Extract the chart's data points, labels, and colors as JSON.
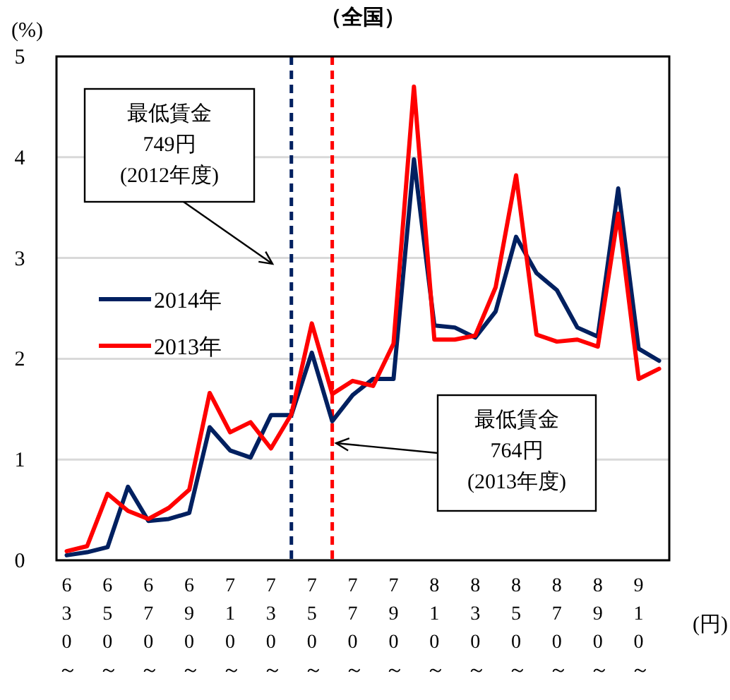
{
  "chart_data": {
    "type": "line",
    "title": "（全国）",
    "ylabel": "(%)",
    "xlabel": "(円)",
    "x": [
      630,
      640,
      650,
      660,
      670,
      680,
      690,
      700,
      710,
      720,
      730,
      740,
      750,
      760,
      770,
      780,
      790,
      800,
      810,
      820,
      830,
      840,
      850,
      860,
      870,
      880,
      890,
      900,
      910,
      920
    ],
    "xlim": [
      625,
      925
    ],
    "xticks": [
      {
        "value": 630,
        "label": "630～"
      },
      {
        "value": 650,
        "label": "650～"
      },
      {
        "value": 670,
        "label": "670～"
      },
      {
        "value": 690,
        "label": "690～"
      },
      {
        "value": 710,
        "label": "710～"
      },
      {
        "value": 730,
        "label": "730～"
      },
      {
        "value": 750,
        "label": "750～"
      },
      {
        "value": 770,
        "label": "770～"
      },
      {
        "value": 790,
        "label": "790～"
      },
      {
        "value": 810,
        "label": "810～"
      },
      {
        "value": 830,
        "label": "830～"
      },
      {
        "value": 850,
        "label": "850～"
      },
      {
        "value": 870,
        "label": "870～"
      },
      {
        "value": 890,
        "label": "890～"
      },
      {
        "value": 910,
        "label": "910～"
      }
    ],
    "ylim": [
      0,
      5
    ],
    "yticks": [
      0,
      1,
      2,
      3,
      4,
      5
    ],
    "grid": "y",
    "legend": "left",
    "marker": "none",
    "line_style": "solid",
    "series": [
      {
        "name": "2014年",
        "color": "#002060",
        "values": [
          0.05,
          0.08,
          0.13,
          0.73,
          0.39,
          0.41,
          0.47,
          1.32,
          1.09,
          1.02,
          1.44,
          1.44,
          2.06,
          1.38,
          1.64,
          1.8,
          1.8,
          3.98,
          2.33,
          2.31,
          2.21,
          2.47,
          3.21,
          2.85,
          2.68,
          2.31,
          2.22,
          3.69,
          2.1,
          1.98
        ]
      },
      {
        "name": "2013年",
        "color": "#ff0000",
        "values": [
          0.09,
          0.14,
          0.66,
          0.49,
          0.41,
          0.52,
          0.7,
          1.66,
          1.27,
          1.37,
          1.11,
          1.45,
          2.35,
          1.65,
          1.78,
          1.73,
          2.15,
          4.7,
          2.19,
          2.19,
          2.23,
          2.71,
          3.82,
          2.24,
          2.17,
          2.19,
          2.12,
          3.44,
          1.8,
          1.9
        ]
      }
    ],
    "ref_lines": [
      {
        "axis": "x",
        "value": 740,
        "color": "#002060",
        "line_style": "dashed"
      },
      {
        "axis": "x",
        "value": 760,
        "color": "#ff0000",
        "line_style": "dashed"
      }
    ],
    "annotations": [
      "最低賃金\n749円\n(2012年度)",
      "最低賃金\n764円\n(2013年度)"
    ]
  }
}
